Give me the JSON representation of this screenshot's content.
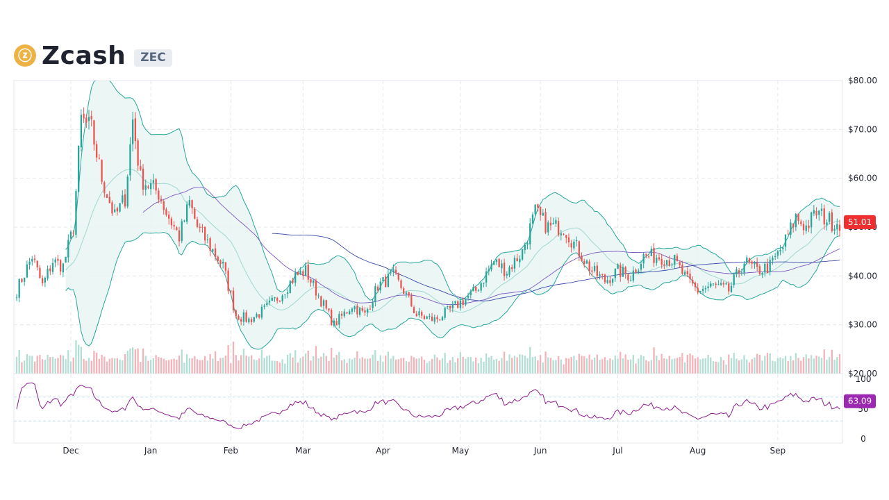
{
  "header": {
    "icon": "zcash-logo-icon",
    "icon_glyph": "ⓩ",
    "coin_name": "Zcash",
    "coin_symbol": "ZEC"
  },
  "colors": {
    "up": "#26a69a",
    "down": "#ef5350",
    "bollinger_band": "#26a69a",
    "bollinger_fill": "#e8f5f3",
    "ma_short": "#7e57c2",
    "ma_long": "#3949ab",
    "rsi": "#8e1c8e",
    "price_badge": "#ef2f2f",
    "rsi_badge": "#9c27b0"
  },
  "chart_data": [
    {
      "type": "candlestick",
      "subtype": "price with bollinger bands, moving averages and volume",
      "y_axis_ticks": [
        "$20.00",
        "$30.00",
        "$40.00",
        "$50.00",
        "$60.00",
        "$70.00",
        "$80.00"
      ],
      "ylim": [
        20,
        80
      ],
      "x_tick_labels": [
        "Dec",
        "Jan",
        "Feb",
        "Mar",
        "Apr",
        "May",
        "Jun",
        "Jul",
        "Aug",
        "Sep"
      ],
      "x_tick_day_index": [
        21,
        52,
        83,
        111,
        142,
        172,
        203,
        233,
        264,
        295
      ],
      "num_days": 320,
      "close_anchors": [
        [
          0,
          37
        ],
        [
          6,
          44
        ],
        [
          10,
          38
        ],
        [
          14,
          43
        ],
        [
          18,
          42
        ],
        [
          22,
          50
        ],
        [
          25,
          72
        ],
        [
          29,
          70
        ],
        [
          33,
          60
        ],
        [
          38,
          52
        ],
        [
          42,
          56
        ],
        [
          45,
          72
        ],
        [
          48,
          60
        ],
        [
          55,
          57
        ],
        [
          58,
          53
        ],
        [
          63,
          48
        ],
        [
          67,
          55
        ],
        [
          70,
          50
        ],
        [
          75,
          46
        ],
        [
          80,
          42
        ],
        [
          85,
          32
        ],
        [
          90,
          31
        ],
        [
          96,
          33
        ],
        [
          102,
          36
        ],
        [
          108,
          40
        ],
        [
          112,
          41
        ],
        [
          117,
          36
        ],
        [
          123,
          30
        ],
        [
          130,
          34
        ],
        [
          135,
          32
        ],
        [
          140,
          38
        ],
        [
          146,
          40
        ],
        [
          150,
          37
        ],
        [
          155,
          32
        ],
        [
          162,
          31
        ],
        [
          168,
          33
        ],
        [
          173,
          35
        ],
        [
          178,
          37
        ],
        [
          185,
          43
        ],
        [
          190,
          41
        ],
        [
          196,
          45
        ],
        [
          201,
          53
        ],
        [
          206,
          50
        ],
        [
          212,
          50
        ],
        [
          218,
          45
        ],
        [
          223,
          41
        ],
        [
          228,
          39
        ],
        [
          233,
          41
        ],
        [
          238,
          40
        ],
        [
          243,
          44
        ],
        [
          249,
          44
        ],
        [
          255,
          43
        ],
        [
          260,
          39
        ],
        [
          264,
          37
        ],
        [
          270,
          38
        ],
        [
          276,
          37
        ],
        [
          282,
          43
        ],
        [
          287,
          41
        ],
        [
          292,
          42
        ],
        [
          297,
          46
        ],
        [
          302,
          52
        ],
        [
          306,
          50
        ],
        [
          310,
          53
        ],
        [
          316,
          51
        ],
        [
          319,
          51
        ]
      ],
      "volume_note": "volume bars shown along the bottom of the price panel, coloured by candle direction",
      "last_price_label": "51.01"
    },
    {
      "type": "line",
      "subtype": "RSI",
      "y_axis_ticks": [
        "0",
        "50",
        "100"
      ],
      "ylim": [
        0,
        100
      ],
      "reference_lines": [
        70,
        30
      ],
      "last_value_label": "63.09"
    }
  ]
}
